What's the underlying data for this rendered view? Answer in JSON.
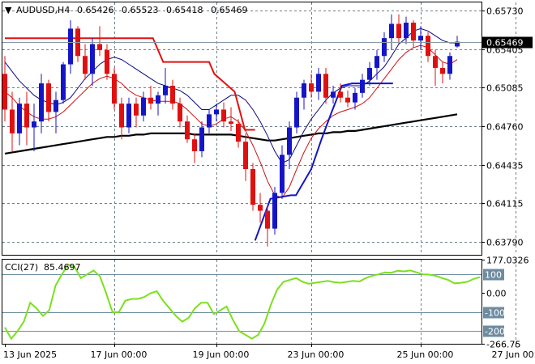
{
  "header": {
    "symbol": "AUDUSD,H4",
    "open": "0.65426",
    "high": "0.65523",
    "low": "0.65418",
    "close": "0.65469"
  },
  "indicator": {
    "name": "CCI(27)",
    "value": "85.4697"
  },
  "colors": {
    "bull": "#1515c8",
    "bear": "#e01010",
    "grid": "#6f7f87",
    "ma_black": "#000000",
    "ma_blue": "#0a0a7e",
    "ma_red": "#c81414",
    "stop_red": "#e01010",
    "stop_blue": "#1414c8",
    "cci": "#7be01e",
    "current_tag": "#000000",
    "level_tag": "#6e8ca0"
  },
  "chart_data": [
    {
      "type": "candlestick",
      "ylim": [
        0.6368,
        0.658
      ],
      "y_ticks": [
        "0.65730",
        "0.65405",
        "0.65085",
        "0.64760",
        "0.64435",
        "0.64115",
        "0.63790"
      ],
      "current_price": "0.65469",
      "x_labels": [
        "13 Jun 2025",
        "17 Jun 00:00",
        "19 Jun 00:00",
        "23 Jun 00:00",
        "25 Jun 00:00",
        "27 Jun 00:00"
      ],
      "candles": [
        [
          0.652,
          0.6535,
          0.648,
          0.649
        ],
        [
          0.649,
          0.6505,
          0.6455,
          0.647
        ],
        [
          0.647,
          0.65,
          0.646,
          0.6495
        ],
        [
          0.6495,
          0.6505,
          0.646,
          0.6475
        ],
        [
          0.6475,
          0.6495,
          0.6455,
          0.648
        ],
        [
          0.648,
          0.652,
          0.647,
          0.6512
        ],
        [
          0.6512,
          0.6515,
          0.648,
          0.6488
        ],
        [
          0.6488,
          0.6505,
          0.647,
          0.6498
        ],
        [
          0.6498,
          0.653,
          0.6495,
          0.6528
        ],
        [
          0.6528,
          0.6565,
          0.652,
          0.6558
        ],
        [
          0.6558,
          0.656,
          0.653,
          0.6535
        ],
        [
          0.6535,
          0.6545,
          0.6515,
          0.652
        ],
        [
          0.652,
          0.655,
          0.651,
          0.6545
        ],
        [
          0.6545,
          0.656,
          0.6535,
          0.654
        ],
        [
          0.654,
          0.6545,
          0.6515,
          0.652
        ],
        [
          0.652,
          0.6525,
          0.649,
          0.6495
        ],
        [
          0.6495,
          0.65,
          0.6465,
          0.6475
        ],
        [
          0.6475,
          0.65,
          0.647,
          0.6495
        ],
        [
          0.6495,
          0.65,
          0.6475,
          0.6485
        ],
        [
          0.6485,
          0.6505,
          0.648,
          0.65
        ],
        [
          0.65,
          0.651,
          0.649,
          0.6495
        ],
        [
          0.6495,
          0.6505,
          0.6485,
          0.6502
        ],
        [
          0.6502,
          0.6525,
          0.6495,
          0.651
        ],
        [
          0.651,
          0.6515,
          0.649,
          0.6495
        ],
        [
          0.6495,
          0.65,
          0.6475,
          0.648
        ],
        [
          0.648,
          0.6485,
          0.6462,
          0.6465
        ],
        [
          0.6465,
          0.647,
          0.6445,
          0.6455
        ],
        [
          0.6455,
          0.648,
          0.645,
          0.6475
        ],
        [
          0.6475,
          0.649,
          0.647,
          0.6486
        ],
        [
          0.6486,
          0.6495,
          0.648,
          0.649
        ],
        [
          0.649,
          0.6496,
          0.6475,
          0.648
        ],
        [
          0.648,
          0.6492,
          0.6472,
          0.6478
        ],
        [
          0.6478,
          0.6482,
          0.6458,
          0.6463
        ],
        [
          0.6463,
          0.647,
          0.643,
          0.644
        ],
        [
          0.644,
          0.6445,
          0.6405,
          0.641
        ],
        [
          0.641,
          0.642,
          0.6395,
          0.6405
        ],
        [
          0.6405,
          0.641,
          0.6375,
          0.639
        ],
        [
          0.639,
          0.6425,
          0.6385,
          0.642
        ],
        [
          0.642,
          0.646,
          0.6415,
          0.6452
        ],
        [
          0.6452,
          0.648,
          0.644,
          0.6475
        ],
        [
          0.6475,
          0.6505,
          0.647,
          0.65
        ],
        [
          0.65,
          0.6515,
          0.649,
          0.6512
        ],
        [
          0.6512,
          0.652,
          0.65,
          0.6505
        ],
        [
          0.6505,
          0.6525,
          0.6498,
          0.652
        ],
        [
          0.652,
          0.6525,
          0.6495,
          0.65
        ],
        [
          0.65,
          0.651,
          0.6495,
          0.6505
        ],
        [
          0.6505,
          0.6512,
          0.6496,
          0.65
        ],
        [
          0.65,
          0.6506,
          0.6492,
          0.6496
        ],
        [
          0.6496,
          0.6508,
          0.649,
          0.6504
        ],
        [
          0.6504,
          0.652,
          0.65,
          0.6515
        ],
        [
          0.6515,
          0.653,
          0.651,
          0.6525
        ],
        [
          0.6525,
          0.654,
          0.6515,
          0.6535
        ],
        [
          0.6535,
          0.6555,
          0.653,
          0.655
        ],
        [
          0.655,
          0.657,
          0.654,
          0.6562
        ],
        [
          0.6562,
          0.657,
          0.6545,
          0.655
        ],
        [
          0.655,
          0.6568,
          0.6545,
          0.6563
        ],
        [
          0.6563,
          0.6565,
          0.6542,
          0.6548
        ],
        [
          0.6548,
          0.656,
          0.654,
          0.6552
        ],
        [
          0.6552,
          0.6555,
          0.653,
          0.6535
        ],
        [
          0.6535,
          0.654,
          0.651,
          0.6525
        ],
        [
          0.6525,
          0.653,
          0.6512,
          0.652
        ],
        [
          0.652,
          0.6538,
          0.6515,
          0.6535
        ],
        [
          0.6543,
          0.6552,
          0.6542,
          0.6547
        ]
      ],
      "ma_black": [
        0.6453,
        0.6454,
        0.6455,
        0.6456,
        0.6457,
        0.6458,
        0.6459,
        0.646,
        0.6461,
        0.6462,
        0.6463,
        0.6464,
        0.6465,
        0.6466,
        0.6467,
        0.6467,
        0.6468,
        0.6468,
        0.6469,
        0.6469,
        0.647,
        0.647,
        0.647,
        0.647,
        0.647,
        0.647,
        0.6469,
        0.6469,
        0.6469,
        0.6469,
        0.6469,
        0.6469,
        0.6468,
        0.6467,
        0.6466,
        0.6465,
        0.6464,
        0.6464,
        0.6465,
        0.6466,
        0.6467,
        0.6468,
        0.6469,
        0.647,
        0.647,
        0.6471,
        0.6471,
        0.6472,
        0.6472,
        0.6473,
        0.6474,
        0.6475,
        0.6476,
        0.6477,
        0.6478,
        0.6479,
        0.648,
        0.6481,
        0.6482,
        0.6483,
        0.6484,
        0.6485,
        0.6486
      ],
      "ma_blue": [
        0.653,
        0.6522,
        0.6514,
        0.6508,
        0.6502,
        0.6498,
        0.6496,
        0.6494,
        0.6496,
        0.65,
        0.6508,
        0.6516,
        0.6522,
        0.6528,
        0.6532,
        0.6534,
        0.6532,
        0.6528,
        0.6524,
        0.652,
        0.6516,
        0.6512,
        0.651,
        0.6508,
        0.6506,
        0.6502,
        0.6496,
        0.649,
        0.649,
        0.6494,
        0.6498,
        0.6502,
        0.6502,
        0.6498,
        0.649,
        0.648,
        0.6468,
        0.6455,
        0.6445,
        0.6448,
        0.646,
        0.6472,
        0.6482,
        0.649,
        0.6498,
        0.6504,
        0.6508,
        0.651,
        0.651,
        0.651,
        0.6514,
        0.652,
        0.6526,
        0.6535,
        0.6545,
        0.655,
        0.6556,
        0.6558,
        0.6556,
        0.6552,
        0.6548,
        0.6546,
        0.6546
      ],
      "ma_red": [
        0.6505,
        0.65,
        0.6493,
        0.6488,
        0.6484,
        0.6482,
        0.6482,
        0.6484,
        0.6488,
        0.6494,
        0.65,
        0.6506,
        0.6512,
        0.6516,
        0.6518,
        0.6516,
        0.6512,
        0.6506,
        0.6502,
        0.65,
        0.6498,
        0.6497,
        0.6497,
        0.6497,
        0.6495,
        0.649,
        0.6484,
        0.6478,
        0.6476,
        0.6478,
        0.6482,
        0.6484,
        0.648,
        0.6472,
        0.646,
        0.6446,
        0.643,
        0.6418,
        0.6416,
        0.6425,
        0.644,
        0.6454,
        0.6466,
        0.6474,
        0.648,
        0.6485,
        0.6488,
        0.649,
        0.6492,
        0.6495,
        0.65,
        0.6508,
        0.6516,
        0.6524,
        0.6532,
        0.6538,
        0.6542,
        0.6544,
        0.6542,
        0.6536,
        0.653,
        0.6528,
        0.6532
      ],
      "stop_red": [
        [
          0,
          0.655
        ],
        [
          27,
          0.655
        ],
        [
          29,
          0.655
        ],
        [
          31,
          0.653
        ],
        [
          40,
          0.653
        ],
        [
          41,
          0.652
        ],
        [
          45,
          0.6505
        ],
        [
          47,
          0.6473
        ],
        [
          49,
          0.6473
        ]
      ],
      "stop_blue": [
        [
          49,
          0.638
        ],
        [
          52,
          0.6415
        ],
        [
          56,
          0.6418
        ],
        [
          57,
          0.6418
        ],
        [
          60,
          0.644
        ],
        [
          62,
          0.6465
        ],
        [
          64,
          0.6488
        ],
        [
          66,
          0.651
        ],
        [
          68,
          0.6512
        ],
        [
          76,
          0.6512
        ]
      ]
    },
    {
      "type": "line",
      "title": "CCI(27)",
      "ylim": [
        -266.75,
        177.0326
      ],
      "y_ticks": [
        "177.0326",
        "100",
        "0.00",
        "-100",
        "-200",
        "-266.75"
      ],
      "series": [
        {
          "values": [
            -180,
            -240,
            -200,
            -150,
            -50,
            -80,
            -120,
            -90,
            40,
            100,
            150,
            140,
            80,
            100,
            120,
            90,
            0,
            -100,
            -100,
            -40,
            -30,
            -30,
            -20,
            0,
            10,
            -40,
            -80,
            -120,
            -150,
            -130,
            -80,
            -50,
            -50,
            -110,
            -90,
            -70,
            -140,
            -200,
            -220,
            -240,
            -220,
            -160,
            -60,
            20,
            60,
            70,
            80,
            60,
            50,
            55,
            60,
            65,
            58,
            55,
            60,
            65,
            62,
            80,
            92,
            100,
            110,
            108,
            118,
            115,
            120,
            110,
            100,
            98,
            92,
            80,
            70,
            52,
            55,
            60,
            75,
            85
          ]
        }
      ]
    }
  ]
}
